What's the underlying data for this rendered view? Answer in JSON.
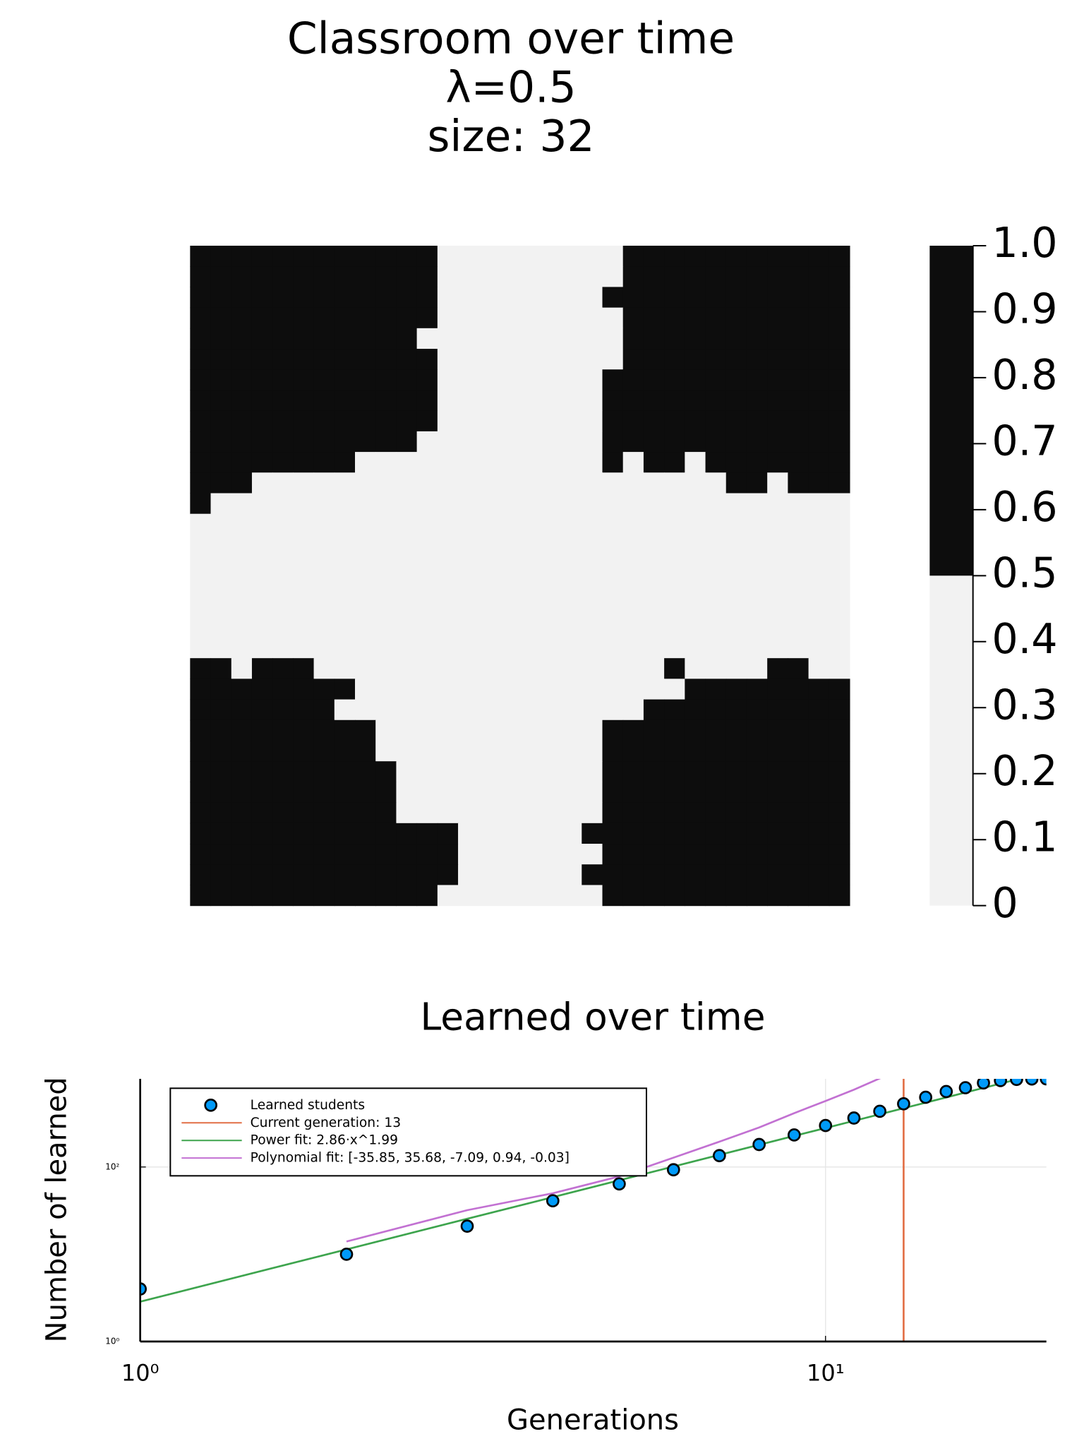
{
  "chart_data": [
    {
      "type": "heatmap",
      "title": [
        "Classroom over time",
        "λ=0.5",
        "size: 32"
      ],
      "colors": [
        "#f2f2f2",
        "#0d0d0d"
      ],
      "clim": [
        0,
        1
      ],
      "cticks": [
        0,
        0.1,
        0.2,
        0.3,
        0.4,
        0.5,
        0.6,
        0.7,
        0.8,
        0.9,
        {
          "value": 1,
          "label": "1.0"
        }
      ],
      "values": [
        [
          1,
          1,
          1,
          1,
          1,
          1,
          1,
          1,
          1,
          1,
          1,
          1,
          0,
          0,
          0,
          0,
          0,
          0,
          0,
          0,
          0,
          1,
          1,
          1,
          1,
          1,
          1,
          1,
          1,
          1,
          1,
          1
        ],
        [
          1,
          1,
          1,
          1,
          1,
          1,
          1,
          1,
          1,
          1,
          1,
          1,
          0,
          0,
          0,
          0,
          0,
          0,
          0,
          0,
          0,
          1,
          1,
          1,
          1,
          1,
          1,
          1,
          1,
          1,
          1,
          1
        ],
        [
          1,
          1,
          1,
          1,
          1,
          1,
          1,
          1,
          1,
          1,
          1,
          1,
          0,
          0,
          0,
          0,
          0,
          0,
          0,
          0,
          1,
          1,
          1,
          1,
          1,
          1,
          1,
          1,
          1,
          1,
          1,
          1
        ],
        [
          1,
          1,
          1,
          1,
          1,
          1,
          1,
          1,
          1,
          1,
          1,
          1,
          0,
          0,
          0,
          0,
          0,
          0,
          0,
          0,
          0,
          1,
          1,
          1,
          1,
          1,
          1,
          1,
          1,
          1,
          1,
          1
        ],
        [
          1,
          1,
          1,
          1,
          1,
          1,
          1,
          1,
          1,
          1,
          1,
          0,
          0,
          0,
          0,
          0,
          0,
          0,
          0,
          0,
          0,
          1,
          1,
          1,
          1,
          1,
          1,
          1,
          1,
          1,
          1,
          1
        ],
        [
          1,
          1,
          1,
          1,
          1,
          1,
          1,
          1,
          1,
          1,
          1,
          1,
          0,
          0,
          0,
          0,
          0,
          0,
          0,
          0,
          0,
          1,
          1,
          1,
          1,
          1,
          1,
          1,
          1,
          1,
          1,
          1
        ],
        [
          1,
          1,
          1,
          1,
          1,
          1,
          1,
          1,
          1,
          1,
          1,
          1,
          0,
          0,
          0,
          0,
          0,
          0,
          0,
          0,
          1,
          1,
          1,
          1,
          1,
          1,
          1,
          1,
          1,
          1,
          1,
          1
        ],
        [
          1,
          1,
          1,
          1,
          1,
          1,
          1,
          1,
          1,
          1,
          1,
          1,
          0,
          0,
          0,
          0,
          0,
          0,
          0,
          0,
          1,
          1,
          1,
          1,
          1,
          1,
          1,
          1,
          1,
          1,
          1,
          1
        ],
        [
          1,
          1,
          1,
          1,
          1,
          1,
          1,
          1,
          1,
          1,
          1,
          1,
          0,
          0,
          0,
          0,
          0,
          0,
          0,
          0,
          1,
          1,
          1,
          1,
          1,
          1,
          1,
          1,
          1,
          1,
          1,
          1
        ],
        [
          1,
          1,
          1,
          1,
          1,
          1,
          1,
          1,
          1,
          1,
          1,
          0,
          0,
          0,
          0,
          0,
          0,
          0,
          0,
          0,
          1,
          1,
          1,
          1,
          1,
          1,
          1,
          1,
          1,
          1,
          1,
          1
        ],
        [
          1,
          1,
          1,
          1,
          1,
          1,
          1,
          1,
          0,
          0,
          0,
          0,
          0,
          0,
          0,
          0,
          0,
          0,
          0,
          0,
          1,
          0,
          1,
          1,
          0,
          1,
          1,
          1,
          1,
          1,
          1,
          1
        ],
        [
          1,
          1,
          1,
          0,
          0,
          0,
          0,
          0,
          0,
          0,
          0,
          0,
          0,
          0,
          0,
          0,
          0,
          0,
          0,
          0,
          0,
          0,
          0,
          0,
          0,
          0,
          1,
          1,
          0,
          1,
          1,
          1
        ],
        [
          1,
          0,
          0,
          0,
          0,
          0,
          0,
          0,
          0,
          0,
          0,
          0,
          0,
          0,
          0,
          0,
          0,
          0,
          0,
          0,
          0,
          0,
          0,
          0,
          0,
          0,
          0,
          0,
          0,
          0,
          0,
          0
        ],
        [
          0,
          0,
          0,
          0,
          0,
          0,
          0,
          0,
          0,
          0,
          0,
          0,
          0,
          0,
          0,
          0,
          0,
          0,
          0,
          0,
          0,
          0,
          0,
          0,
          0,
          0,
          0,
          0,
          0,
          0,
          0,
          0
        ],
        [
          0,
          0,
          0,
          0,
          0,
          0,
          0,
          0,
          0,
          0,
          0,
          0,
          0,
          0,
          0,
          0,
          0,
          0,
          0,
          0,
          0,
          0,
          0,
          0,
          0,
          0,
          0,
          0,
          0,
          0,
          0,
          0
        ],
        [
          0,
          0,
          0,
          0,
          0,
          0,
          0,
          0,
          0,
          0,
          0,
          0,
          0,
          0,
          0,
          0,
          0,
          0,
          0,
          0,
          0,
          0,
          0,
          0,
          0,
          0,
          0,
          0,
          0,
          0,
          0,
          0
        ],
        [
          0,
          0,
          0,
          0,
          0,
          0,
          0,
          0,
          0,
          0,
          0,
          0,
          0,
          0,
          0,
          0,
          0,
          0,
          0,
          0,
          0,
          0,
          0,
          0,
          0,
          0,
          0,
          0,
          0,
          0,
          0,
          0
        ],
        [
          0,
          0,
          0,
          0,
          0,
          0,
          0,
          0,
          0,
          0,
          0,
          0,
          0,
          0,
          0,
          0,
          0,
          0,
          0,
          0,
          0,
          0,
          0,
          0,
          0,
          0,
          0,
          0,
          0,
          0,
          0,
          0
        ],
        [
          0,
          0,
          0,
          0,
          0,
          0,
          0,
          0,
          0,
          0,
          0,
          0,
          0,
          0,
          0,
          0,
          0,
          0,
          0,
          0,
          0,
          0,
          0,
          0,
          0,
          0,
          0,
          0,
          0,
          0,
          0,
          0
        ],
        [
          0,
          0,
          0,
          0,
          0,
          0,
          0,
          0,
          0,
          0,
          0,
          0,
          0,
          0,
          0,
          0,
          0,
          0,
          0,
          0,
          0,
          0,
          0,
          0,
          0,
          0,
          0,
          0,
          0,
          0,
          0,
          0
        ],
        [
          1,
          1,
          0,
          1,
          1,
          1,
          0,
          0,
          0,
          0,
          0,
          0,
          0,
          0,
          0,
          0,
          0,
          0,
          0,
          0,
          0,
          0,
          0,
          1,
          0,
          0,
          0,
          0,
          1,
          1,
          0,
          0
        ],
        [
          1,
          1,
          1,
          1,
          1,
          1,
          1,
          1,
          0,
          0,
          0,
          0,
          0,
          0,
          0,
          0,
          0,
          0,
          0,
          0,
          0,
          0,
          0,
          0,
          1,
          1,
          1,
          1,
          1,
          1,
          1,
          1
        ],
        [
          1,
          1,
          1,
          1,
          1,
          1,
          1,
          0,
          0,
          0,
          0,
          0,
          0,
          0,
          0,
          0,
          0,
          0,
          0,
          0,
          0,
          0,
          1,
          1,
          1,
          1,
          1,
          1,
          1,
          1,
          1,
          1
        ],
        [
          1,
          1,
          1,
          1,
          1,
          1,
          1,
          1,
          1,
          0,
          0,
          0,
          0,
          0,
          0,
          0,
          0,
          0,
          0,
          0,
          1,
          1,
          1,
          1,
          1,
          1,
          1,
          1,
          1,
          1,
          1,
          1
        ],
        [
          1,
          1,
          1,
          1,
          1,
          1,
          1,
          1,
          1,
          0,
          0,
          0,
          0,
          0,
          0,
          0,
          0,
          0,
          0,
          0,
          1,
          1,
          1,
          1,
          1,
          1,
          1,
          1,
          1,
          1,
          1,
          1
        ],
        [
          1,
          1,
          1,
          1,
          1,
          1,
          1,
          1,
          1,
          1,
          0,
          0,
          0,
          0,
          0,
          0,
          0,
          0,
          0,
          0,
          1,
          1,
          1,
          1,
          1,
          1,
          1,
          1,
          1,
          1,
          1,
          1
        ],
        [
          1,
          1,
          1,
          1,
          1,
          1,
          1,
          1,
          1,
          1,
          0,
          0,
          0,
          0,
          0,
          0,
          0,
          0,
          0,
          0,
          1,
          1,
          1,
          1,
          1,
          1,
          1,
          1,
          1,
          1,
          1,
          1
        ],
        [
          1,
          1,
          1,
          1,
          1,
          1,
          1,
          1,
          1,
          1,
          0,
          0,
          0,
          0,
          0,
          0,
          0,
          0,
          0,
          0,
          1,
          1,
          1,
          1,
          1,
          1,
          1,
          1,
          1,
          1,
          1,
          1
        ],
        [
          1,
          1,
          1,
          1,
          1,
          1,
          1,
          1,
          1,
          1,
          1,
          1,
          1,
          0,
          0,
          0,
          0,
          0,
          0,
          1,
          1,
          1,
          1,
          1,
          1,
          1,
          1,
          1,
          1,
          1,
          1,
          1
        ],
        [
          1,
          1,
          1,
          1,
          1,
          1,
          1,
          1,
          1,
          1,
          1,
          1,
          1,
          0,
          0,
          0,
          0,
          0,
          0,
          0,
          1,
          1,
          1,
          1,
          1,
          1,
          1,
          1,
          1,
          1,
          1,
          1
        ],
        [
          1,
          1,
          1,
          1,
          1,
          1,
          1,
          1,
          1,
          1,
          1,
          1,
          1,
          0,
          0,
          0,
          0,
          0,
          0,
          1,
          1,
          1,
          1,
          1,
          1,
          1,
          1,
          1,
          1,
          1,
          1,
          1
        ],
        [
          1,
          1,
          1,
          1,
          1,
          1,
          1,
          1,
          1,
          1,
          1,
          1,
          0,
          0,
          0,
          0,
          0,
          0,
          0,
          0,
          1,
          1,
          1,
          1,
          1,
          1,
          1,
          1,
          1,
          1,
          1,
          1
        ]
      ]
    },
    {
      "type": "scatter",
      "title": "Learned over time",
      "xlabel": "Generations",
      "ylabel": "Number of learned",
      "xscale": "log",
      "yscale": "log",
      "xlim": [
        1,
        21
      ],
      "ylim": [
        1,
        1024
      ],
      "xticks": [
        {
          "value": 1,
          "label": "10⁰"
        },
        {
          "value": 10,
          "label": "10¹"
        }
      ],
      "yticks": [
        {
          "value": 1,
          "label": "10⁰"
        },
        {
          "value": 100,
          "label": "10²"
        }
      ],
      "grid": true,
      "legend": "upper left",
      "series": [
        {
          "name": "Learned students",
          "kind": "scatter",
          "color": "#009af9",
          "x": [
            1,
            2,
            3,
            4,
            5,
            6,
            7,
            8,
            9,
            10,
            11,
            12,
            13,
            14,
            15,
            16,
            17,
            18,
            19,
            20,
            21
          ],
          "values": [
            4,
            10,
            21,
            41,
            64,
            93,
            135,
            181,
            233,
            299,
            364,
            435,
            530,
            630,
            733,
            810,
            920,
            980,
            1010,
            1020,
            1024
          ]
        },
        {
          "name": "Current generation: 13",
          "kind": "vline",
          "color": "#e26f46",
          "x": [
            13
          ]
        },
        {
          "name": "Power fit: 2.86·x^1.99",
          "kind": "line",
          "color": "#3da44d",
          "x": [
            1,
            2,
            3,
            4,
            5,
            6,
            7,
            8,
            9,
            10,
            11,
            12,
            13,
            14,
            15,
            16,
            17,
            18,
            19,
            20,
            21
          ],
          "values": [
            2.86,
            11.36,
            25.5,
            45.1,
            70.4,
            101.2,
            137.6,
            179.6,
            227,
            279.5,
            338,
            402,
            471.6,
            547,
            627.6,
            714,
            805.7,
            903,
            1006,
            1115,
            1229
          ]
        },
        {
          "name": "Polynomial fit: [-35.85, 35.68, -7.09, 0.94, -0.03]",
          "kind": "line",
          "color": "#c271d2",
          "x": [
            2,
            3,
            4,
            5,
            6,
            7,
            8,
            9,
            10,
            11,
            12,
            13
          ],
          "values": [
            14,
            32,
            50,
            78,
            128,
            195,
            284,
            414,
            571,
            769,
            1038,
            1400
          ]
        }
      ]
    }
  ]
}
